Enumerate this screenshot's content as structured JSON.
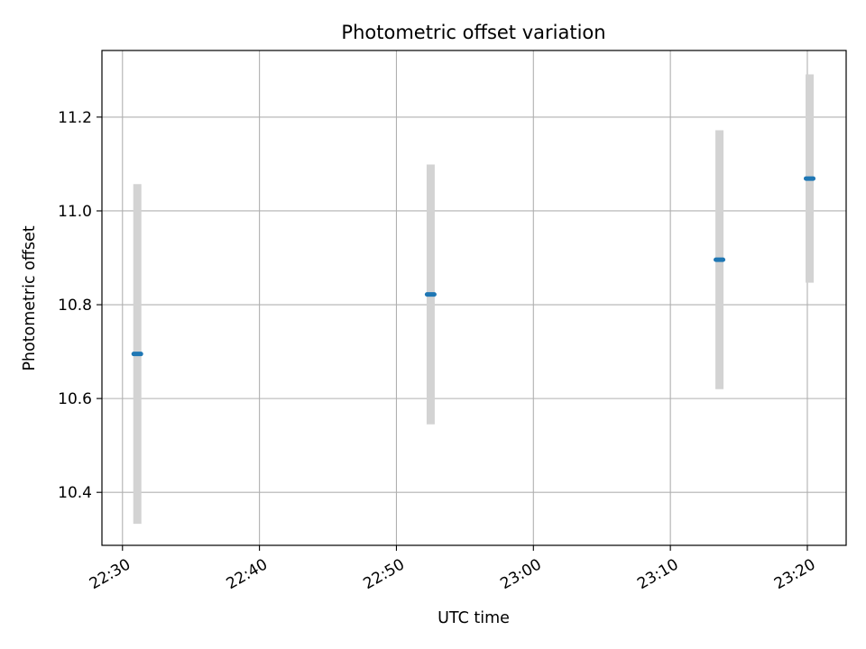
{
  "chart_data": {
    "type": "scatter",
    "title": "Photometric offset variation",
    "xlabel": "UTC time",
    "ylabel": "Photometric offset",
    "x_unit": "time of day (UTC)",
    "xlim": [
      "22:28:30",
      "23:22:50"
    ],
    "ylim": [
      10.287,
      11.342
    ],
    "x_ticks": [
      "22:30",
      "22:40",
      "22:50",
      "23:00",
      "23:10",
      "23:20"
    ],
    "y_ticks": [
      10.4,
      10.6,
      10.8,
      11.0,
      11.2
    ],
    "y_tick_labels": [
      "10.4",
      "10.6",
      "10.8",
      "11.0",
      "11.2"
    ],
    "grid": true,
    "points": [
      {
        "x": "22:31:05",
        "y": 10.695,
        "yerr": 0.362
      },
      {
        "x": "22:52:30",
        "y": 10.822,
        "yerr": 0.277
      },
      {
        "x": "23:13:35",
        "y": 10.896,
        "yerr": 0.276
      },
      {
        "x": "23:20:10",
        "y": 11.069,
        "yerr": 0.222
      }
    ],
    "colors": {
      "marker": "#1f77b4",
      "errorbar": "#d3d3d3",
      "grid": "#b0b0b0",
      "spine": "#000000"
    }
  }
}
